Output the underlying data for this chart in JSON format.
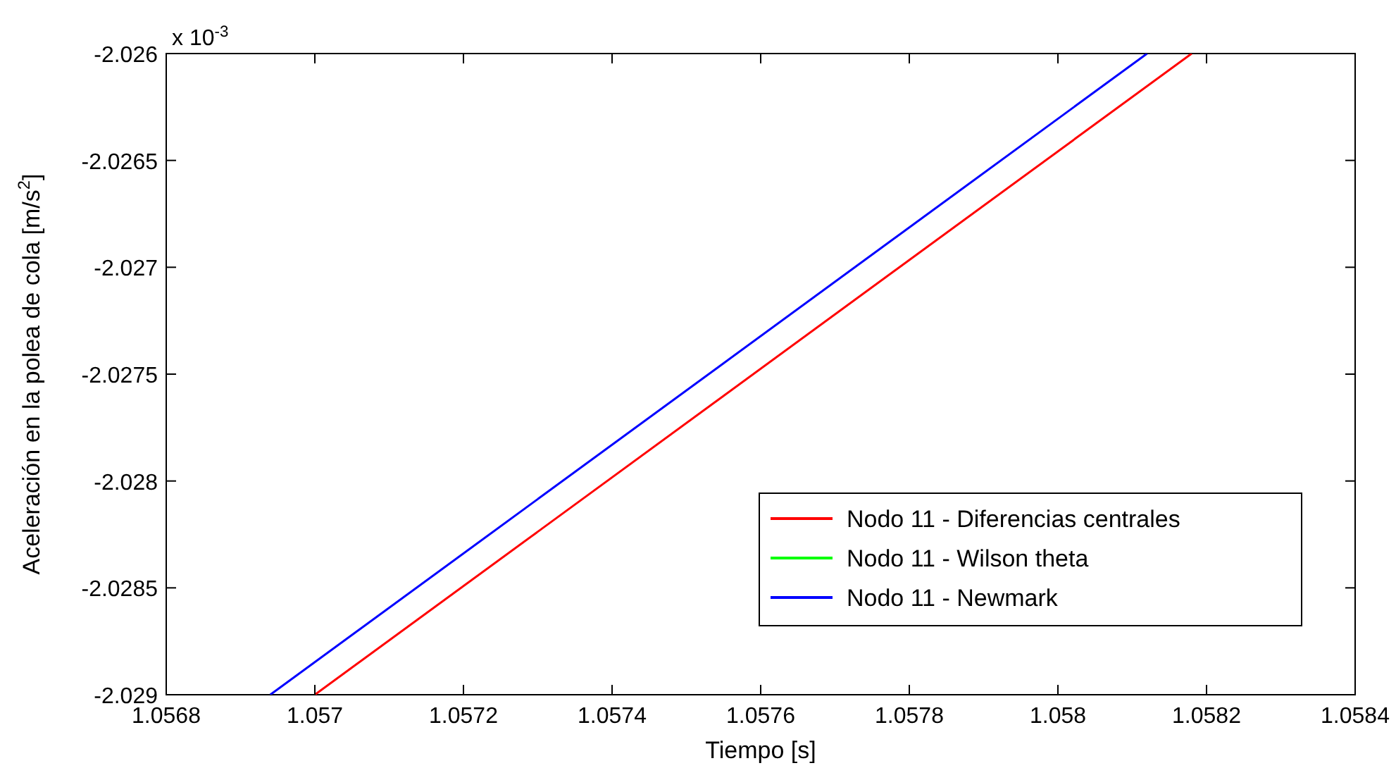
{
  "chart_data": {
    "type": "line",
    "xlabel": "Tiempo [s]",
    "ylabel": "Aceleración en la polea de cola [m/s$^{2}$]",
    "annotations": [
      "x 10$^{-3}$"
    ],
    "xlim": [
      1.0568,
      1.0584
    ],
    "xticks": [
      1.0568,
      1.057,
      1.0572,
      1.0574,
      1.0576,
      1.0578,
      1.058,
      1.0582,
      1.0584
    ],
    "ylim": [
      -2.029,
      -2.026
    ],
    "yticks": [
      -2.029,
      -2.0285,
      -2.028,
      -2.0275,
      -2.027,
      -2.0265,
      -2.026
    ],
    "grid": false,
    "legend": "bottom right",
    "marker": "none",
    "line_style": "solid",
    "series": [
      {
        "name": "Nodo 11 - Diferencias centrales",
        "color": "#ff0000",
        "x": [
          1.057,
          1.05818
        ],
        "values": [
          -2.029,
          -2.026
        ]
      },
      {
        "name": "Nodo 11 - Wilson theta",
        "color": "#00ff00"
      },
      {
        "name": "Nodo 11 - Newmark",
        "color": "#0000ff",
        "x": [
          1.05694,
          1.05812
        ],
        "values": [
          -2.029,
          -2.026
        ]
      }
    ]
  }
}
